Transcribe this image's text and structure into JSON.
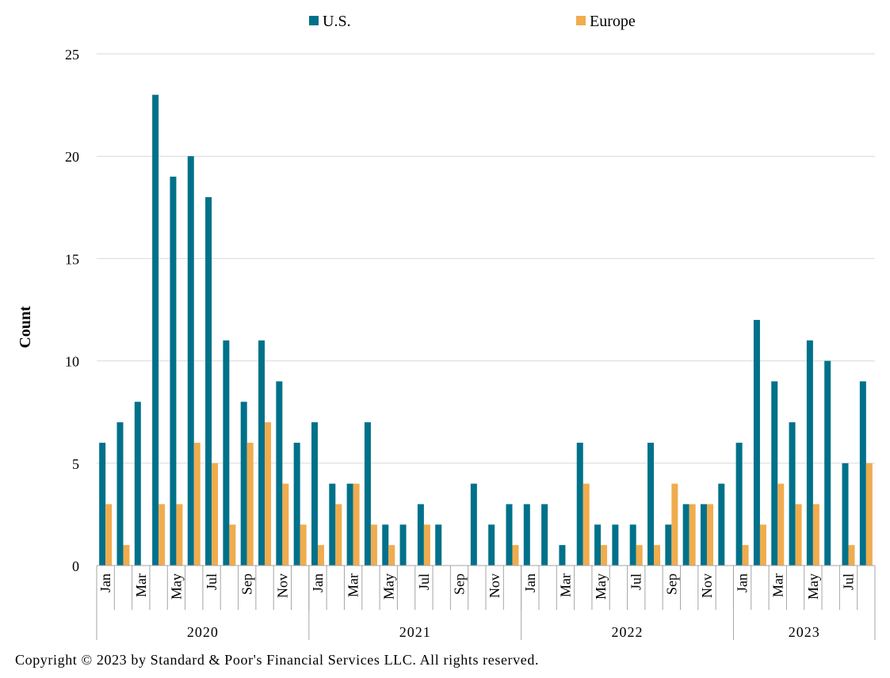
{
  "chart_data": {
    "type": "bar",
    "ylabel": "Count",
    "xlabel": "",
    "ylim": [
      0,
      25
    ],
    "yticks": [
      0,
      5,
      10,
      15,
      20,
      25
    ],
    "grid": true,
    "legend_position": "top-center",
    "colors": {
      "us": "#00718a",
      "europe": "#f0ac4e",
      "grid": "#d9d9d9",
      "axis": "#a6a6a6"
    },
    "categories": [
      "Jan 2020",
      "Feb 2020",
      "Mar 2020",
      "Apr 2020",
      "May 2020",
      "Jun 2020",
      "Jul 2020",
      "Aug 2020",
      "Sep 2020",
      "Oct 2020",
      "Nov 2020",
      "Dec 2020",
      "Jan 2021",
      "Feb 2021",
      "Mar 2021",
      "Apr 2021",
      "May 2021",
      "Jun 2021",
      "Jul 2021",
      "Aug 2021",
      "Sep 2021",
      "Oct 2021",
      "Nov 2021",
      "Dec 2021",
      "Jan 2022",
      "Feb 2022",
      "Mar 2022",
      "Apr 2022",
      "May 2022",
      "Jun 2022",
      "Jul 2022",
      "Aug 2022",
      "Sep 2022",
      "Oct 2022",
      "Nov 2022",
      "Dec 2022",
      "Jan 2023",
      "Feb 2023",
      "Mar 2023",
      "Apr 2023",
      "May 2023",
      "Jun 2023",
      "Jul 2023",
      "Aug 2023"
    ],
    "month_labels": [
      "Jan",
      "",
      "Mar",
      "",
      "May",
      "",
      "Jul",
      "",
      "Sep",
      "",
      "Nov",
      "",
      "Jan",
      "",
      "Mar",
      "",
      "May",
      "",
      "Jul",
      "",
      "Sep",
      "",
      "Nov",
      "",
      "Jan",
      "",
      "Mar",
      "",
      "May",
      "",
      "Jul",
      "",
      "Sep",
      "",
      "Nov",
      "",
      "Jan",
      "",
      "Mar",
      "",
      "May",
      "",
      "Jul",
      ""
    ],
    "year_groups": [
      {
        "label": "2020",
        "months": 12
      },
      {
        "label": "2021",
        "months": 12
      },
      {
        "label": "2022",
        "months": 12
      },
      {
        "label": "2023",
        "months": 8
      }
    ],
    "series": [
      {
        "name": "U.S.",
        "key": "us",
        "values": [
          6,
          7,
          8,
          23,
          19,
          20,
          18,
          11,
          8,
          11,
          9,
          6,
          7,
          4,
          4,
          7,
          2,
          2,
          3,
          2,
          0,
          4,
          2,
          3,
          3,
          3,
          1,
          6,
          2,
          2,
          2,
          6,
          2,
          3,
          3,
          4,
          6,
          12,
          9,
          7,
          11,
          10,
          5,
          9
        ]
      },
      {
        "name": "Europe",
        "key": "europe",
        "values": [
          3,
          1,
          0,
          3,
          3,
          6,
          5,
          2,
          6,
          7,
          4,
          2,
          1,
          3,
          4,
          2,
          1,
          0,
          2,
          0,
          0,
          0,
          0,
          1,
          0,
          0,
          0,
          4,
          1,
          0,
          1,
          1,
          4,
          3,
          3,
          0,
          1,
          2,
          4,
          3,
          3,
          0,
          1,
          5
        ]
      }
    ]
  },
  "footer": {
    "copyright": "Copyright © 2023 by Standard & Poor's Financial Services LLC. All rights reserved."
  }
}
